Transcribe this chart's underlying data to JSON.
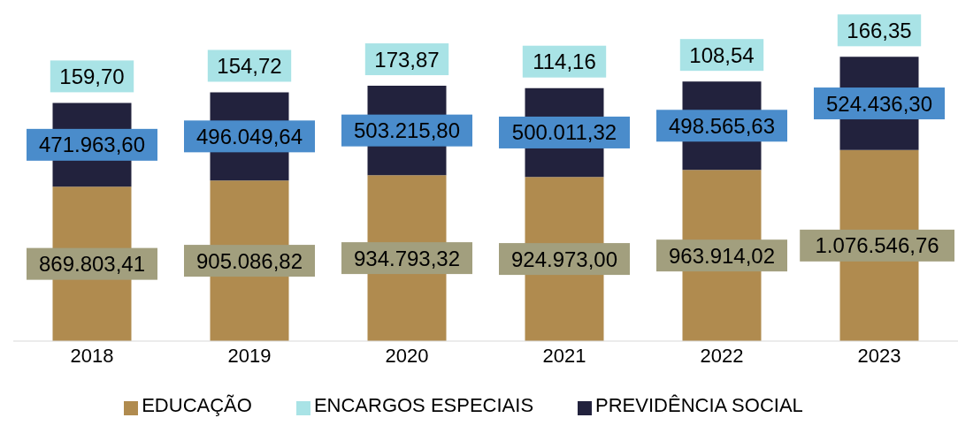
{
  "chart_data": {
    "type": "bar",
    "stacked": true,
    "categories": [
      "2018",
      "2019",
      "2020",
      "2021",
      "2022",
      "2023"
    ],
    "series": [
      {
        "name": "EDUCAÇÃO",
        "color": "#b08b4f",
        "values": [
          869803.41,
          905086.82,
          934793.32,
          924973.0,
          963914.02,
          1076546.76
        ],
        "value_labels": [
          "869.803,41",
          "905.086,82",
          "934.793,32",
          "924.973,00",
          "963.914,02",
          "1.076.546,76"
        ]
      },
      {
        "name": "PREVIDÊNCIA SOCIAL",
        "color": "#22223d",
        "values": [
          471963.6,
          496049.64,
          503215.8,
          500011.32,
          498565.63,
          524436.3
        ],
        "value_labels": [
          "471.963,60",
          "496.049,64",
          "503.215,80",
          "500.011,32",
          "498.565,63",
          "524.436,30"
        ]
      },
      {
        "name": "ENCARGOS ESPECIAIS",
        "color": "#a9e3e6",
        "values": [
          159.7,
          154.72,
          173.87,
          114.16,
          108.54,
          166.35
        ],
        "value_labels": [
          "159,70",
          "154,72",
          "173,87",
          "114,16",
          "108,54",
          "166,35"
        ]
      }
    ],
    "legend": "bottom"
  }
}
